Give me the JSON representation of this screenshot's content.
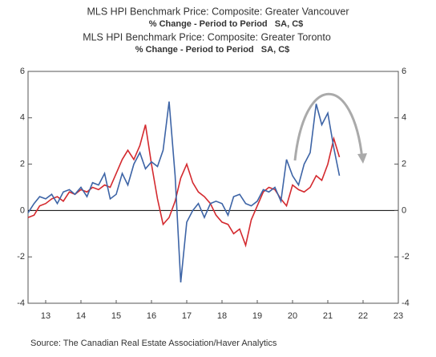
{
  "chart_data": {
    "type": "line",
    "source": "Source:  The Canadian Real Estate Association/Haver Analytics",
    "x": [
      2013.0,
      2013.17,
      2013.33,
      2013.5,
      2013.67,
      2013.83,
      2014.0,
      2014.17,
      2014.33,
      2014.5,
      2014.67,
      2014.83,
      2015.0,
      2015.17,
      2015.33,
      2015.5,
      2015.67,
      2015.83,
      2016.0,
      2016.17,
      2016.33,
      2016.5,
      2016.67,
      2016.83,
      2017.0,
      2017.17,
      2017.33,
      2017.5,
      2017.67,
      2017.83,
      2018.0,
      2018.17,
      2018.33,
      2018.5,
      2018.67,
      2018.83,
      2019.0,
      2019.17,
      2019.33,
      2019.5,
      2019.67,
      2019.83,
      2020.0,
      2020.17,
      2020.33,
      2020.5,
      2020.67,
      2020.83,
      2021.0,
      2021.17,
      2021.33,
      2021.5,
      2021.67,
      2021.83
    ],
    "series": [
      {
        "name": "MLS HPI Benchmark Price: Composite: Greater Vancouver",
        "unit": "% Change - Period to Period   SA, C$",
        "color": "#d42a2f",
        "values": [
          -0.3,
          -0.2,
          0.2,
          0.3,
          0.5,
          0.6,
          0.4,
          0.8,
          0.7,
          0.9,
          0.8,
          1.0,
          0.9,
          1.1,
          1.0,
          1.6,
          2.2,
          2.6,
          2.2,
          2.8,
          3.7,
          2.0,
          0.5,
          -0.6,
          -0.3,
          0.4,
          1.4,
          2.0,
          1.2,
          0.8,
          0.6,
          0.3,
          -0.2,
          -0.5,
          -0.6,
          -1.0,
          -0.8,
          -1.5,
          -0.4,
          0.2,
          0.8,
          1.0,
          0.9,
          0.5,
          0.2,
          1.1,
          0.9,
          0.8,
          1.0,
          1.5,
          1.3,
          2.0,
          3.1,
          2.3
        ]
      },
      {
        "name": "MLS HPI Benchmark Price: Composite: Greater Toronto",
        "unit": "% Change - Period to Period   SA, C$",
        "color": "#3d64a6",
        "values": [
          -0.1,
          0.3,
          0.6,
          0.5,
          0.7,
          0.3,
          0.8,
          0.9,
          0.7,
          1.0,
          0.6,
          1.2,
          1.1,
          1.6,
          0.5,
          0.7,
          1.6,
          1.1,
          2.0,
          2.5,
          1.8,
          2.1,
          1.9,
          2.6,
          4.7,
          1.5,
          -3.1,
          -0.5,
          0.0,
          0.3,
          -0.3,
          0.3,
          0.4,
          0.3,
          -0.2,
          0.6,
          0.7,
          0.3,
          0.2,
          0.4,
          0.9,
          0.8,
          1.0,
          0.4,
          2.2,
          1.5,
          1.1,
          2.0,
          2.5,
          4.6,
          3.7,
          4.2,
          2.7,
          1.5
        ]
      }
    ],
    "xlim": [
      2013.0,
      2023.5
    ],
    "xticks": [
      {
        "value": 2013.5,
        "label": "13"
      },
      {
        "value": 2014.5,
        "label": "14"
      },
      {
        "value": 2015.5,
        "label": "15"
      },
      {
        "value": 2016.5,
        "label": "16"
      },
      {
        "value": 2017.5,
        "label": "17"
      },
      {
        "value": 2018.5,
        "label": "18"
      },
      {
        "value": 2019.5,
        "label": "19"
      },
      {
        "value": 2020.5,
        "label": "20"
      },
      {
        "value": 2021.5,
        "label": "21"
      },
      {
        "value": 2022.5,
        "label": "22"
      },
      {
        "value": 2023.5,
        "label": "23"
      }
    ],
    "ylim": [
      -4,
      6
    ],
    "yticks": [
      6,
      4,
      2,
      0,
      -2,
      -4
    ],
    "y2lim": [
      -4,
      6
    ],
    "y2ticks": [
      6,
      4,
      2,
      0,
      -2,
      -4
    ]
  }
}
